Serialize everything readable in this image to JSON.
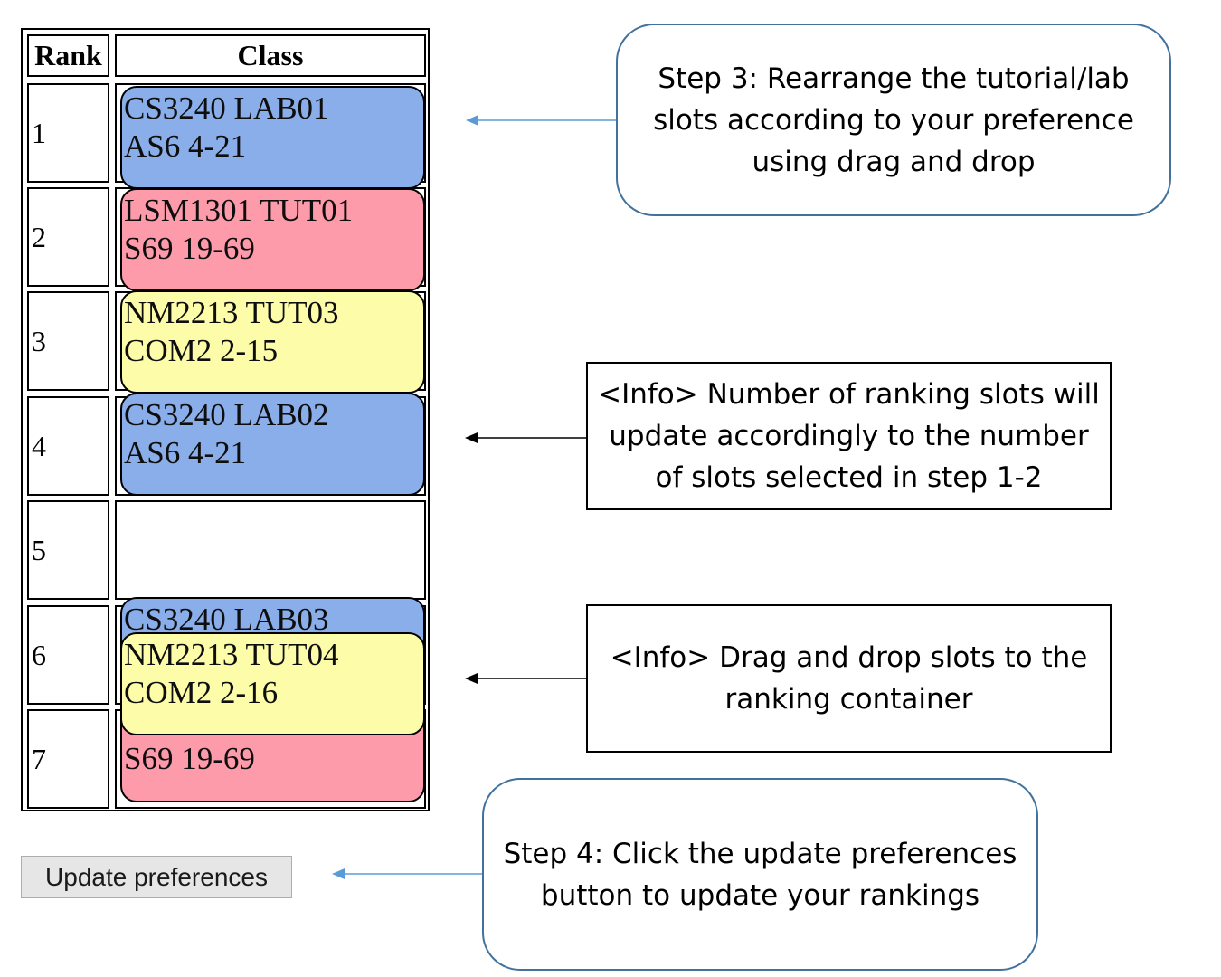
{
  "table": {
    "header_rank": "Rank",
    "header_class": "Class",
    "ranks": [
      "1",
      "2",
      "3",
      "4",
      "5",
      "6",
      "7"
    ]
  },
  "slots": [
    {
      "line1": "CS3240 LAB01",
      "line2": "AS6 4-21",
      "color": "#8aaeea"
    },
    {
      "line1": "LSM1301 TUT01",
      "line2": "S69 19-69",
      "color": "#fd9bab"
    },
    {
      "line1": "NM2213 TUT03",
      "line2": "COM2 2-15",
      "color": "#fdfca8"
    },
    {
      "line1": "CS3240 LAB02",
      "line2": "AS6 4-21",
      "color": "#8aaeea"
    },
    {
      "line1": "CS3240 LAB03",
      "color": "#8aaeea"
    },
    {
      "line2": "S69 19-69",
      "color": "#fd9bab"
    },
    {
      "line1": "NM2213 TUT04",
      "line2": "COM2 2-16",
      "color": "#fdfca8"
    }
  ],
  "button": {
    "label": "Update preferences"
  },
  "callouts": {
    "step3": "Step 3: Rearrange the tutorial/lab slots according to your preference using drag and drop",
    "info_slots": "<Info> Number of ranking slots will update accordingly to the number of slots selected in step 1-2",
    "info_drag": "<Info> Drag and drop slots to the ranking container",
    "step4": "Step 4: Click the update preferences button to update your rankings"
  },
  "colors": {
    "callout_border_blue": "#41719c",
    "arrow_blue": "#5b9bd5",
    "arrow_black": "#000000"
  }
}
